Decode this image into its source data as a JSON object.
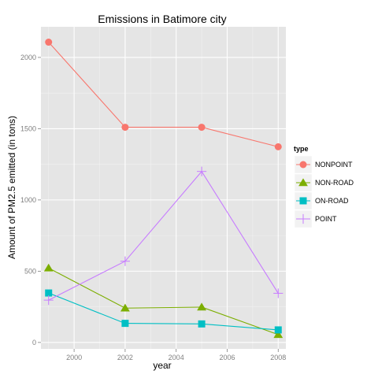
{
  "chart_data": {
    "type": "line",
    "title": "Emissions in Batimore city",
    "xlabel": "year",
    "ylabel": "Amount of PM2.5 emitted (in tons)",
    "x": [
      1999,
      2002,
      2005,
      2008
    ],
    "xlim": [
      1998.7,
      2008.3
    ],
    "ylim": [
      -45,
      2215
    ],
    "x_ticks": [
      2000,
      2002,
      2004,
      2006,
      2008
    ],
    "x_minor_ticks": [
      1999,
      2001,
      2003,
      2005,
      2007
    ],
    "y_ticks": [
      0,
      500,
      1000,
      1500,
      2000
    ],
    "y_minor_ticks": [
      250,
      750,
      1250,
      1750
    ],
    "grid": true,
    "legend": {
      "title": "type",
      "position": "right"
    },
    "series": [
      {
        "name": "NONPOINT",
        "values": [
          2107,
          1510,
          1510,
          1373
        ],
        "color": "#F8766D",
        "marker": "circle"
      },
      {
        "name": "NON-ROAD",
        "values": [
          522,
          241,
          248,
          55
        ],
        "color": "#7CAE00",
        "marker": "triangle"
      },
      {
        "name": "ON-ROAD",
        "values": [
          347,
          134,
          130,
          88
        ],
        "color": "#00BFC4",
        "marker": "square"
      },
      {
        "name": "POINT",
        "values": [
          297,
          570,
          1200,
          345
        ],
        "color": "#C77CFF",
        "marker": "plus"
      }
    ]
  }
}
